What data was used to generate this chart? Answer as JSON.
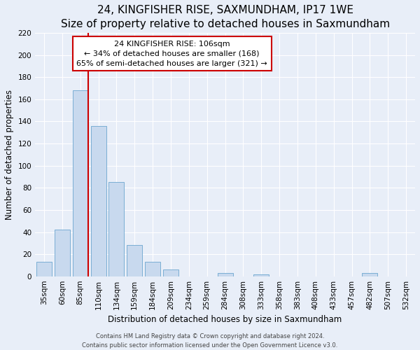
{
  "title": "24, KINGFISHER RISE, SAXMUNDHAM, IP17 1WE",
  "subtitle": "Size of property relative to detached houses in Saxmundham",
  "xlabel": "Distribution of detached houses by size in Saxmundham",
  "ylabel": "Number of detached properties",
  "bar_labels": [
    "35sqm",
    "60sqm",
    "85sqm",
    "110sqm",
    "134sqm",
    "159sqm",
    "184sqm",
    "209sqm",
    "234sqm",
    "259sqm",
    "284sqm",
    "308sqm",
    "333sqm",
    "358sqm",
    "383sqm",
    "408sqm",
    "433sqm",
    "457sqm",
    "482sqm",
    "507sqm",
    "532sqm"
  ],
  "bar_values": [
    13,
    42,
    168,
    136,
    85,
    28,
    13,
    6,
    0,
    0,
    3,
    0,
    2,
    0,
    0,
    0,
    0,
    0,
    3,
    0,
    0
  ],
  "bar_color": "#c8d9ee",
  "bar_edge_color": "#7aaed4",
  "vline_color": "#cc0000",
  "annotation_title": "24 KINGFISHER RISE: 106sqm",
  "annotation_line1": "← 34% of detached houses are smaller (168)",
  "annotation_line2": "65% of semi-detached houses are larger (321) →",
  "annotation_box_color": "#ffffff",
  "annotation_box_edge": "#cc0000",
  "ylim": [
    0,
    220
  ],
  "yticks": [
    0,
    20,
    40,
    60,
    80,
    100,
    120,
    140,
    160,
    180,
    200,
    220
  ],
  "footer1": "Contains HM Land Registry data © Crown copyright and database right 2024.",
  "footer2": "Contains public sector information licensed under the Open Government Licence v3.0.",
  "title_fontsize": 11,
  "subtitle_fontsize": 9.5,
  "axis_label_fontsize": 8.5,
  "tick_fontsize": 7.5,
  "annotation_fontsize": 8,
  "footer_fontsize": 6,
  "background_color": "#e8eef8",
  "plot_bg_color": "#e8eef8",
  "grid_color": "#ffffff"
}
